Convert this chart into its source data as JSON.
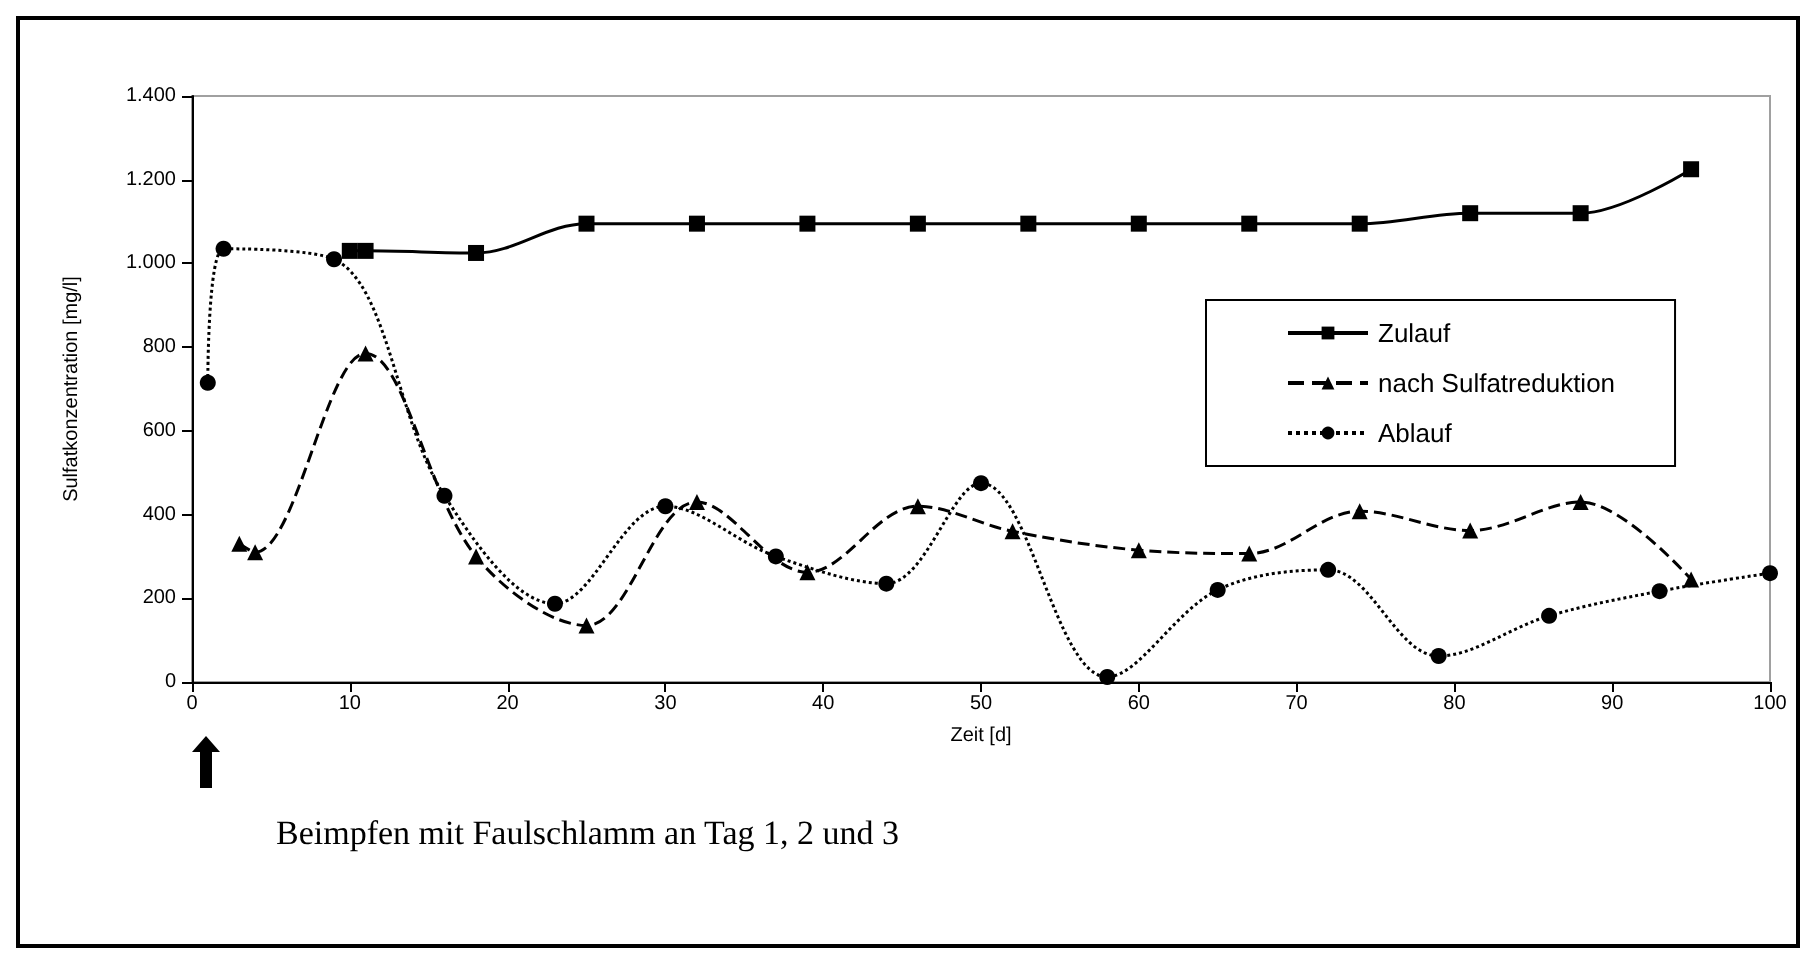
{
  "chart_data": {
    "type": "line",
    "xlabel": "Zeit [d]",
    "ylabel": "Sulfatkonzentration [mg/l]",
    "xlim": [
      0,
      100
    ],
    "xticks": [
      0,
      10,
      20,
      30,
      40,
      50,
      60,
      70,
      80,
      90,
      100
    ],
    "ylim": [
      0,
      1400
    ],
    "yticks": [
      0,
      200,
      400,
      600,
      800,
      {
        "value": 1000,
        "label": "1.000"
      },
      {
        "value": 1200,
        "label": "1.200"
      },
      {
        "value": 1400,
        "label": "1.400"
      }
    ],
    "grid": false,
    "legend": "right",
    "annotations": [
      "Beimpfen mit Faulschlamm an Tag 1, 2 und 3"
    ],
    "series": [
      {
        "name": "Zulauf",
        "color": "#000000",
        "marker": "square",
        "line_style": "solid",
        "x": [
          10,
          11,
          18,
          25,
          32,
          39,
          46,
          53,
          60,
          67,
          74,
          81,
          88,
          95
        ],
        "values": [
          1030,
          1030,
          1025,
          1095,
          1095,
          1095,
          1095,
          1095,
          1095,
          1095,
          1095,
          1120,
          1120,
          1225
        ]
      },
      {
        "name": "nach Sulfatreduktion",
        "color": "#000000",
        "marker": "triangle",
        "line_style": "dashed",
        "x": [
          3,
          4,
          11,
          18,
          25,
          32,
          39,
          46,
          52,
          60,
          67,
          74,
          81,
          88,
          95
        ],
        "values": [
          330,
          310,
          785,
          300,
          135,
          430,
          262,
          420,
          360,
          315,
          307,
          408,
          362,
          430,
          245
        ]
      },
      {
        "name": "Ablauf",
        "color": "#000000",
        "marker": "circle",
        "line_style": "dotted",
        "x": [
          1,
          2,
          9,
          16,
          23,
          30,
          37,
          44,
          50,
          58,
          65,
          72,
          79,
          86,
          93,
          100
        ],
        "values": [
          715,
          1035,
          1010,
          445,
          187,
          420,
          300,
          235,
          475,
          12,
          220,
          268,
          62,
          158,
          217,
          260
        ]
      }
    ]
  }
}
